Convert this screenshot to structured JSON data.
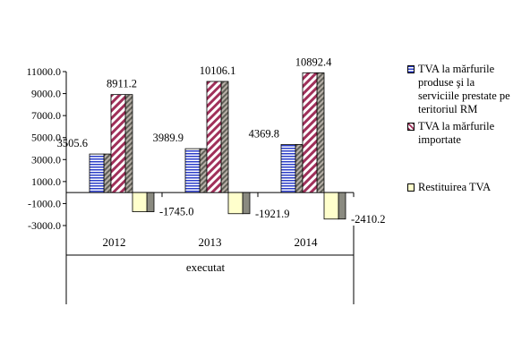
{
  "chart_data": {
    "type": "bar",
    "categories": [
      "2012",
      "2013",
      "2014"
    ],
    "xlabel": "executat",
    "ylim": [
      -3000,
      11000
    ],
    "yticks": [
      11000,
      9000,
      7000,
      5000,
      3000,
      1000,
      -1000,
      -3000
    ],
    "ytick_labels": [
      "11000.0",
      "9000.0",
      "7000.0",
      "5000.0",
      "3000.0",
      "1000.0",
      "-1000.0",
      "-3000.0"
    ],
    "series": [
      {
        "name": "TVA la mărfurile produse şi la serviciile prestate pe teritoriul RM",
        "values": [
          3505.6,
          3989.9,
          4369.8
        ],
        "labels": [
          "3505.6",
          "3989.9",
          "4369.8"
        ],
        "color": "#3040c0",
        "pattern": "horizontal-lines"
      },
      {
        "name": "TVA la mărfurile importate",
        "values": [
          8911.2,
          10106.1,
          10892.4
        ],
        "labels": [
          "8911.2",
          "10106.1",
          "10892.4"
        ],
        "color": "#a0305a",
        "pattern": "diagonal-stripes"
      },
      {
        "name": "Restituirea TVA",
        "values": [
          -1745.0,
          -1921.9,
          -2410.2
        ],
        "labels": [
          "-1745.0",
          "-1921.9",
          "-2410.2"
        ],
        "color": "#ffffcc",
        "pattern": "solid"
      }
    ],
    "legend_position": "right",
    "grid": false
  }
}
